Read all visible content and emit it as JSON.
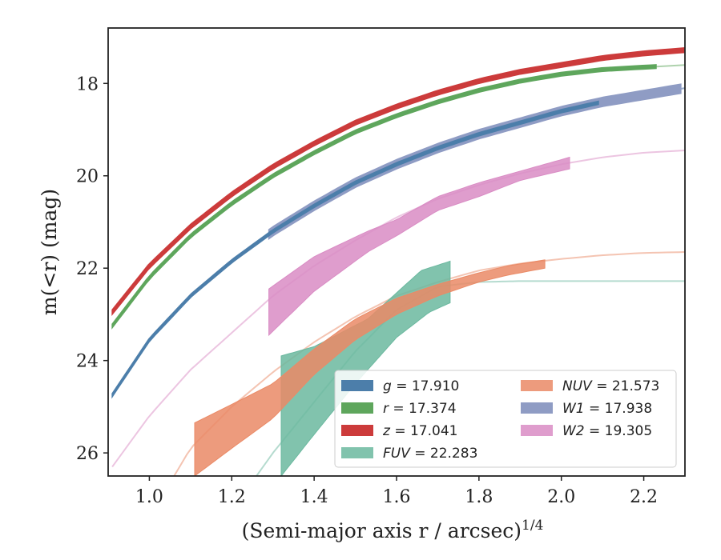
{
  "chart_data": {
    "type": "line",
    "title": "",
    "xlabel": "(Semi-major axis r / arcsec)",
    "xlabel_sup": "1/4",
    "ylabel": "m(<r) (mag)",
    "xlim": [
      0.9,
      2.3
    ],
    "ylim": [
      26.5,
      16.8
    ],
    "y_inverted": true,
    "xticks": [
      1.0,
      1.2,
      1.4,
      1.6,
      1.8,
      2.0,
      2.2
    ],
    "xtick_labels": [
      "1.0",
      "1.2",
      "1.4",
      "1.6",
      "1.8",
      "2.0",
      "2.2"
    ],
    "yticks": [
      18,
      20,
      22,
      24,
      26
    ],
    "ytick_labels": [
      "18",
      "20",
      "22",
      "24",
      "26"
    ],
    "grid": false,
    "legend_position": "lower-right",
    "legend_columns": 2,
    "series": [
      {
        "name": "g = 17.910",
        "band": "g",
        "value": "17.910",
        "color": "#4c7eaa",
        "model": [
          [
            0.91,
            24.75
          ],
          [
            1.0,
            23.55
          ],
          [
            1.1,
            22.6
          ],
          [
            1.2,
            21.85
          ],
          [
            1.3,
            21.2
          ],
          [
            1.4,
            20.65
          ],
          [
            1.5,
            20.15
          ],
          [
            1.6,
            19.75
          ],
          [
            1.7,
            19.4
          ],
          [
            1.8,
            19.1
          ],
          [
            1.9,
            18.85
          ],
          [
            2.0,
            18.6
          ],
          [
            2.1,
            18.4
          ],
          [
            2.2,
            18.25
          ],
          [
            2.3,
            18.1
          ]
        ],
        "data_range": [
          0.91,
          2.09
        ],
        "band_width": 0.07
      },
      {
        "name": "r = 17.374",
        "band": "r",
        "value": "17.374",
        "color": "#5ea65c",
        "model": [
          [
            0.91,
            23.25
          ],
          [
            1.0,
            22.2
          ],
          [
            1.1,
            21.3
          ],
          [
            1.2,
            20.6
          ],
          [
            1.3,
            20.0
          ],
          [
            1.4,
            19.5
          ],
          [
            1.5,
            19.05
          ],
          [
            1.6,
            18.7
          ],
          [
            1.7,
            18.4
          ],
          [
            1.8,
            18.15
          ],
          [
            1.9,
            17.95
          ],
          [
            2.0,
            17.8
          ],
          [
            2.1,
            17.7
          ],
          [
            2.2,
            17.65
          ],
          [
            2.3,
            17.6
          ]
        ],
        "data_range": [
          0.91,
          2.23
        ],
        "band_width": 0.08
      },
      {
        "name": "z = 17.041",
        "band": "z",
        "value": "17.041",
        "color": "#cc3b3b",
        "model": [
          [
            0.91,
            22.95
          ],
          [
            1.0,
            21.95
          ],
          [
            1.1,
            21.1
          ],
          [
            1.2,
            20.4
          ],
          [
            1.3,
            19.8
          ],
          [
            1.4,
            19.3
          ],
          [
            1.5,
            18.85
          ],
          [
            1.6,
            18.5
          ],
          [
            1.7,
            18.2
          ],
          [
            1.8,
            17.95
          ],
          [
            1.9,
            17.75
          ],
          [
            2.0,
            17.6
          ],
          [
            2.1,
            17.45
          ],
          [
            2.2,
            17.35
          ],
          [
            2.3,
            17.28
          ]
        ],
        "data_range": [
          0.91,
          2.3
        ],
        "band_width": 0.1
      },
      {
        "name": "FUV = 22.283",
        "band": "FUV",
        "value": "22.283",
        "color": "#6bb89f",
        "model": [
          [
            1.22,
            27.0
          ],
          [
            1.3,
            26.0
          ],
          [
            1.4,
            24.9
          ],
          [
            1.5,
            23.8
          ],
          [
            1.6,
            22.9
          ],
          [
            1.7,
            22.4
          ],
          [
            1.8,
            22.3
          ],
          [
            1.9,
            22.28
          ],
          [
            2.0,
            22.28
          ],
          [
            2.1,
            22.28
          ],
          [
            2.2,
            22.28
          ],
          [
            2.3,
            22.28
          ]
        ],
        "data_upper": [
          [
            1.32,
            23.9
          ],
          [
            1.4,
            23.7
          ],
          [
            1.53,
            23.1
          ],
          [
            1.66,
            22.05
          ],
          [
            1.73,
            21.85
          ]
        ],
        "data_lower": [
          [
            1.32,
            26.5
          ],
          [
            1.4,
            25.6
          ],
          [
            1.5,
            24.5
          ],
          [
            1.6,
            23.5
          ],
          [
            1.68,
            22.95
          ],
          [
            1.73,
            22.75
          ]
        ]
      },
      {
        "name": "NUV = 21.573",
        "band": "NUV",
        "value": "21.573",
        "color": "#ea8a66",
        "model": [
          [
            1.06,
            26.5
          ],
          [
            1.1,
            25.9
          ],
          [
            1.2,
            25.0
          ],
          [
            1.3,
            24.25
          ],
          [
            1.4,
            23.6
          ],
          [
            1.5,
            23.05
          ],
          [
            1.6,
            22.6
          ],
          [
            1.7,
            22.3
          ],
          [
            1.8,
            22.05
          ],
          [
            1.9,
            21.9
          ],
          [
            2.0,
            21.8
          ],
          [
            2.1,
            21.72
          ],
          [
            2.2,
            21.67
          ],
          [
            2.3,
            21.65
          ]
        ],
        "data_upper": [
          [
            1.11,
            25.35
          ],
          [
            1.2,
            24.95
          ],
          [
            1.3,
            24.5
          ],
          [
            1.4,
            23.75
          ],
          [
            1.5,
            23.1
          ],
          [
            1.6,
            22.65
          ],
          [
            1.7,
            22.35
          ],
          [
            1.8,
            22.1
          ],
          [
            1.87,
            21.95
          ],
          [
            1.96,
            21.82
          ]
        ],
        "data_lower": [
          [
            1.11,
            26.5
          ],
          [
            1.2,
            25.9
          ],
          [
            1.3,
            25.25
          ],
          [
            1.4,
            24.3
          ],
          [
            1.5,
            23.55
          ],
          [
            1.6,
            23.0
          ],
          [
            1.7,
            22.6
          ],
          [
            1.8,
            22.3
          ],
          [
            1.87,
            22.15
          ],
          [
            1.96,
            22.0
          ]
        ]
      },
      {
        "name": "W1 = 17.938",
        "band": "W1",
        "value": "17.938",
        "color": "#8f9cc4",
        "model": [
          [
            0.91,
            24.75
          ],
          [
            1.0,
            23.55
          ],
          [
            1.1,
            22.6
          ],
          [
            1.2,
            21.85
          ],
          [
            1.3,
            21.2
          ],
          [
            1.4,
            20.65
          ],
          [
            1.5,
            20.15
          ],
          [
            1.6,
            19.75
          ],
          [
            1.7,
            19.4
          ],
          [
            1.8,
            19.1
          ],
          [
            1.9,
            18.85
          ],
          [
            2.0,
            18.6
          ],
          [
            2.1,
            18.4
          ],
          [
            2.2,
            18.25
          ],
          [
            2.3,
            18.1
          ]
        ],
        "data_range": [
          1.29,
          2.29
        ],
        "band_width": 0.2
      },
      {
        "name": "W2 = 19.305",
        "band": "W2",
        "value": "19.305",
        "color": "#d98cc4",
        "model": [
          [
            0.91,
            26.3
          ],
          [
            1.0,
            25.2
          ],
          [
            1.1,
            24.2
          ],
          [
            1.2,
            23.4
          ],
          [
            1.3,
            22.6
          ],
          [
            1.4,
            21.95
          ],
          [
            1.5,
            21.4
          ],
          [
            1.6,
            20.9
          ],
          [
            1.7,
            20.5
          ],
          [
            1.8,
            20.2
          ],
          [
            1.9,
            19.95
          ],
          [
            2.0,
            19.75
          ],
          [
            2.1,
            19.6
          ],
          [
            2.2,
            19.5
          ],
          [
            2.3,
            19.45
          ]
        ],
        "data_upper": [
          [
            1.29,
            22.45
          ],
          [
            1.4,
            21.75
          ],
          [
            1.53,
            21.2
          ],
          [
            1.6,
            20.95
          ],
          [
            1.7,
            20.45
          ],
          [
            1.8,
            20.15
          ],
          [
            1.9,
            19.9
          ],
          [
            2.02,
            19.6
          ]
        ],
        "data_lower": [
          [
            1.29,
            23.45
          ],
          [
            1.4,
            22.5
          ],
          [
            1.53,
            21.65
          ],
          [
            1.6,
            21.3
          ],
          [
            1.7,
            20.75
          ],
          [
            1.8,
            20.45
          ],
          [
            1.9,
            20.1
          ],
          [
            2.02,
            19.85
          ]
        ]
      }
    ]
  }
}
